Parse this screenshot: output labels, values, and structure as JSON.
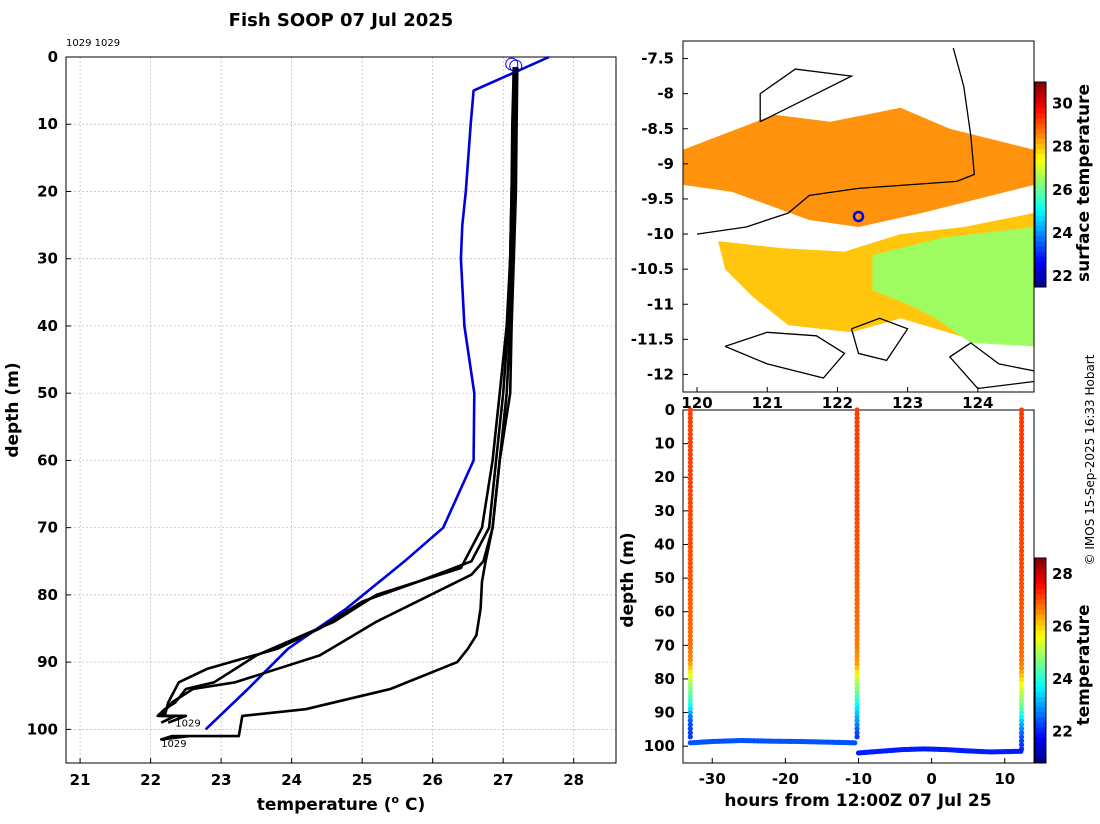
{
  "figure": {
    "title": "Fish SOOP 07 Jul 2025",
    "credit": "© IMOS 15-Sep-2025 16:33 Hobart"
  },
  "chart_data": [
    {
      "type": "line",
      "name": "temperature-profile",
      "title": "Fish SOOP 07 Jul 2025",
      "xlabel": "temperature (",
      "xlabel_sup": "o",
      "xlabel_tail": " C)",
      "ylabel": "depth (m)",
      "xlim": [
        20.8,
        28.6
      ],
      "ylim": [
        105,
        0
      ],
      "xticks": [
        21,
        22,
        23,
        24,
        25,
        26,
        27,
        28
      ],
      "yticks": [
        0,
        10,
        20,
        30,
        40,
        50,
        60,
        70,
        80,
        90,
        100
      ],
      "annotations": [
        {
          "text": "1029 1029",
          "where": "top-left"
        },
        {
          "text": "1029",
          "x": 22.35,
          "y": 99.0
        },
        {
          "text": "1029",
          "x": 22.15,
          "y": 102.0
        }
      ],
      "series": [
        {
          "name": "climatology",
          "color": "#0000dd",
          "x": [
            27.65,
            26.58,
            26.54,
            26.47,
            26.42,
            26.4,
            26.45,
            26.59,
            26.58,
            26.15,
            25.6,
            24.78,
            23.95,
            23.38,
            22.78
          ],
          "y": [
            0,
            5,
            10,
            20,
            25,
            30,
            40,
            50,
            60,
            70,
            75,
            82,
            88,
            94,
            100
          ]
        },
        {
          "name": "profile-1",
          "color": "#000000",
          "x": [
            27.15,
            27.13,
            27.12,
            27.1,
            27.07,
            27.0,
            26.9,
            26.8,
            26.55,
            25.8,
            25.0,
            24.4,
            23.8,
            22.8,
            22.4,
            22.25,
            22.2,
            22.5,
            22.25
          ],
          "y": [
            1.5,
            10,
            20,
            30,
            40,
            50,
            60,
            70,
            75,
            78,
            81,
            85,
            88,
            91,
            93,
            96,
            98,
            98,
            99
          ]
        },
        {
          "name": "profile-2",
          "color": "#000000",
          "x": [
            27.15,
            27.14,
            27.12,
            27.1,
            27.05,
            26.95,
            26.85,
            26.7,
            26.4,
            25.2,
            24.6,
            23.5,
            22.9,
            22.5,
            22.35,
            22.2,
            22.1,
            22.5
          ],
          "y": [
            1.5,
            10,
            20,
            30,
            40,
            50,
            60,
            70,
            76,
            80,
            84,
            89,
            93,
            94,
            96,
            97,
            98,
            98
          ]
        },
        {
          "name": "profile-3",
          "color": "#000000",
          "x": [
            27.18,
            27.17,
            27.15,
            27.13,
            27.1,
            27.05,
            26.95,
            26.85,
            26.72,
            26.55,
            25.2,
            24.4,
            23.2,
            22.6,
            22.3,
            22.15,
            22.35,
            22.15
          ],
          "y": [
            1.5,
            10,
            20,
            30,
            40,
            50,
            60,
            70,
            75,
            77,
            84,
            89,
            93,
            94,
            96,
            98,
            98,
            99
          ]
        },
        {
          "name": "profile-4",
          "color": "#000000",
          "x": [
            27.2,
            27.19,
            27.18,
            27.15,
            27.12,
            27.1,
            26.95,
            26.85,
            26.75,
            26.7,
            26.68,
            26.62,
            26.5,
            26.35,
            25.4,
            24.2,
            23.3,
            23.25,
            22.3,
            22.15,
            22.55,
            22.3
          ],
          "y": [
            1.5,
            10,
            20,
            30,
            40,
            50,
            60,
            70,
            75,
            78,
            82,
            86,
            88,
            90,
            94,
            97,
            98,
            101,
            101,
            101.5,
            101,
            101
          ]
        }
      ],
      "start_marker": {
        "x": 27.15,
        "y": 1.2
      }
    },
    {
      "type": "heatmap",
      "name": "surface-temperature-map",
      "xticks": [
        120,
        121,
        122,
        123,
        124
      ],
      "yticks": [
        -7.5,
        -8,
        -8.5,
        -9,
        -9.5,
        -10,
        -10.5,
        -11,
        -11.5,
        -12
      ],
      "xlim": [
        119.8,
        124.8
      ],
      "ylim": [
        -12.25,
        -7.25
      ],
      "colorbar": {
        "label": "surface temperature",
        "range": [
          21.5,
          31
        ],
        "ticks": [
          22,
          24,
          26,
          28,
          30
        ]
      },
      "marker": {
        "lon": 122.3,
        "lat": -9.75
      },
      "fields": [
        {
          "label": "warm-north",
          "value": 28.5,
          "poly": [
            [
              119.8,
              -8.8
            ],
            [
              121.1,
              -8.3
            ],
            [
              121.9,
              -8.4
            ],
            [
              122.9,
              -8.2
            ],
            [
              123.6,
              -8.5
            ],
            [
              124.8,
              -8.8
            ],
            [
              124.8,
              -9.3
            ],
            [
              124.0,
              -9.5
            ],
            [
              123.2,
              -9.7
            ],
            [
              122.3,
              -9.9
            ],
            [
              121.6,
              -9.8
            ],
            [
              120.5,
              -9.4
            ],
            [
              119.8,
              -9.3
            ]
          ]
        },
        {
          "label": "warm-south",
          "value": 28.0,
          "poly": [
            [
              120.3,
              -10.1
            ],
            [
              121.2,
              -10.2
            ],
            [
              122.1,
              -10.25
            ],
            [
              122.9,
              -10.0
            ],
            [
              123.8,
              -9.9
            ],
            [
              124.8,
              -9.7
            ],
            [
              124.8,
              -11.6
            ],
            [
              123.9,
              -11.5
            ],
            [
              122.9,
              -11.2
            ],
            [
              122.2,
              -11.4
            ],
            [
              121.3,
              -11.3
            ],
            [
              120.8,
              -10.9
            ],
            [
              120.4,
              -10.5
            ]
          ]
        },
        {
          "label": "cooler-southeast",
          "value": 26.5,
          "poly": [
            [
              122.5,
              -10.3
            ],
            [
              123.5,
              -10.05
            ],
            [
              124.8,
              -9.9
            ],
            [
              124.8,
              -11.6
            ],
            [
              123.9,
              -11.55
            ],
            [
              123.4,
              -11.2
            ],
            [
              123.0,
              -11.0
            ],
            [
              122.5,
              -10.8
            ]
          ]
        }
      ],
      "coastlines": [
        [
          [
            120.0,
            -10.0
          ],
          [
            120.7,
            -9.9
          ],
          [
            121.3,
            -9.7
          ],
          [
            121.6,
            -9.45
          ],
          [
            122.3,
            -9.35
          ],
          [
            123.0,
            -9.3
          ],
          [
            123.7,
            -9.25
          ]
        ],
        [
          [
            120.9,
            -8.4
          ],
          [
            121.6,
            -8.05
          ],
          [
            122.2,
            -7.75
          ],
          [
            121.4,
            -7.65
          ],
          [
            120.9,
            -8.0
          ],
          [
            120.9,
            -8.4
          ]
        ],
        [
          [
            123.65,
            -7.35
          ],
          [
            123.8,
            -7.9
          ],
          [
            123.9,
            -8.6
          ],
          [
            123.95,
            -9.15
          ],
          [
            123.7,
            -9.25
          ]
        ],
        [
          [
            120.4,
            -11.6
          ],
          [
            121.0,
            -11.4
          ],
          [
            121.7,
            -11.45
          ],
          [
            122.1,
            -11.7
          ],
          [
            121.8,
            -12.05
          ],
          [
            121.0,
            -11.85
          ],
          [
            120.4,
            -11.6
          ]
        ],
        [
          [
            122.2,
            -11.35
          ],
          [
            122.6,
            -11.2
          ],
          [
            123.0,
            -11.35
          ],
          [
            122.7,
            -11.8
          ],
          [
            122.3,
            -11.7
          ],
          [
            122.2,
            -11.35
          ]
        ],
        [
          [
            124.8,
            -11.95
          ],
          [
            124.3,
            -11.85
          ],
          [
            123.9,
            -11.55
          ],
          [
            123.6,
            -11.75
          ],
          [
            124.0,
            -12.2
          ],
          [
            124.8,
            -12.1
          ]
        ]
      ]
    },
    {
      "type": "scatter",
      "name": "depth-time-section",
      "xlabel": "hours from 12:00Z 07 Jul 25",
      "ylabel": "depth (m)",
      "xlim": [
        -34,
        14
      ],
      "ylim": [
        105,
        0
      ],
      "xticks": [
        -30,
        -20,
        -10,
        0,
        10
      ],
      "yticks": [
        0,
        10,
        20,
        30,
        40,
        50,
        60,
        70,
        80,
        90,
        100
      ],
      "colorbar": {
        "label": "temperature",
        "range": [
          20.8,
          28.6
        ],
        "ticks": [
          22,
          24,
          26,
          28
        ]
      },
      "casts": [
        {
          "hour": -33.0,
          "depth": [
            0,
            10,
            20,
            30,
            40,
            50,
            60,
            70,
            75,
            78,
            81,
            85,
            88,
            91,
            93,
            96,
            98
          ],
          "temp": [
            27.15,
            27.13,
            27.12,
            27.1,
            27.07,
            27.0,
            26.9,
            26.8,
            26.55,
            25.8,
            25.0,
            24.4,
            23.8,
            22.8,
            22.4,
            22.25,
            22.2
          ]
        },
        {
          "hour": -10.2,
          "depth": [
            0,
            10,
            20,
            30,
            40,
            50,
            60,
            70,
            76,
            80,
            84,
            89,
            93,
            96,
            98
          ],
          "temp": [
            27.15,
            27.14,
            27.12,
            27.1,
            27.05,
            26.95,
            26.85,
            26.7,
            26.4,
            25.2,
            24.6,
            23.5,
            22.9,
            22.35,
            22.1
          ]
        },
        {
          "hour": 12.3,
          "depth": [
            0,
            10,
            20,
            30,
            40,
            50,
            60,
            70,
            75,
            77,
            84,
            89,
            93,
            96,
            98,
            101
          ],
          "temp": [
            27.18,
            27.17,
            27.15,
            27.13,
            27.1,
            27.05,
            26.95,
            26.85,
            26.72,
            26.55,
            25.2,
            24.4,
            23.2,
            22.6,
            22.3,
            22.15
          ]
        }
      ],
      "tracks": [
        {
          "hours": [
            -33,
            -30,
            -26,
            -22,
            -18,
            -14,
            -10.3
          ],
          "depth": [
            99,
            98.6,
            98.3,
            98.5,
            98.6,
            98.8,
            99
          ],
          "temp": 22.4
        },
        {
          "hours": [
            -10,
            -7,
            -4,
            -1,
            2,
            5,
            8,
            12.3
          ],
          "depth": [
            102,
            101.5,
            101,
            100.8,
            101,
            101.4,
            101.7,
            101.5
          ],
          "temp": 22.0
        }
      ]
    }
  ]
}
